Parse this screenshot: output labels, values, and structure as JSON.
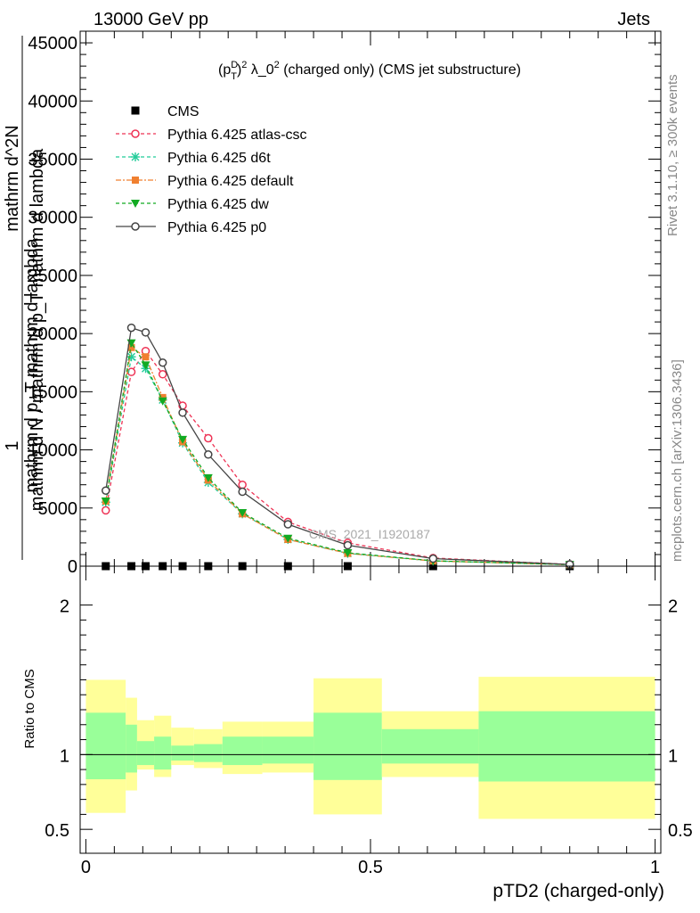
{
  "header": {
    "left": "13000 GeV pp",
    "right": "Jets"
  },
  "side_labels": {
    "rivet": "Rivet 3.1.10, ≥ 300k events",
    "mcplots": "mcplots.cern.ch [arXiv:1306.3436]"
  },
  "watermark": "CMS_2021_I1920187",
  "chart_data": [
    {
      "type": "line",
      "title_parts": {
        "a": "(p",
        "sup1": "D",
        "sub1": "T",
        "b": ")",
        "sup2": "2",
        "c": " λ_0",
        "sup3": "2",
        "d": " (charged only) (CMS jet substructure)"
      },
      "ylabel_lines": [
        "1",
        "mathrm d N / mathrm d p_T mathrm d lambda",
        "mathrm d^2N",
        "mathrm d p_T mathrm d lambda",
        "T"
      ],
      "ylim": [
        0,
        46000
      ],
      "xlim": [
        -0.01,
        1.01
      ],
      "y_ticks": [
        0,
        5000,
        10000,
        15000,
        20000,
        25000,
        30000,
        35000,
        40000,
        45000
      ],
      "y_tick_labels": [
        "0",
        "5000",
        "10000",
        "15000",
        "20000",
        "25000",
        "30000",
        "35000",
        "40000",
        "45000"
      ],
      "legend_position": "top-left",
      "data_x": [
        0.035,
        0.08,
        0.105,
        0.135,
        0.17,
        0.215,
        0.275,
        0.355,
        0.46,
        0.61,
        0.85
      ],
      "data_y": [
        0,
        0,
        0,
        0,
        0,
        0,
        0,
        0,
        0,
        0,
        0
      ],
      "series": [
        {
          "name": "CMS",
          "color": "#000000",
          "marker": "square",
          "dash": "none",
          "x": [
            0.035,
            0.08,
            0.105,
            0.135,
            0.17,
            0.215,
            0.275,
            0.355,
            0.46,
            0.61,
            0.85
          ],
          "y": [
            0,
            0,
            0,
            0,
            0,
            0,
            0,
            0,
            0,
            0,
            0
          ]
        },
        {
          "name": "Pythia 6.425 atlas-csc",
          "color": "#ee3355",
          "marker": "open-circle",
          "dash": "4,3",
          "x": [
            0.035,
            0.08,
            0.105,
            0.135,
            0.17,
            0.215,
            0.275,
            0.355,
            0.46,
            0.61,
            0.85
          ],
          "y": [
            4800,
            16700,
            18500,
            16500,
            13800,
            11000,
            7000,
            3800,
            2000,
            700,
            150
          ]
        },
        {
          "name": "Pythia 6.425 d6t",
          "color": "#22cc99",
          "marker": "star",
          "dash": "4,3",
          "x": [
            0.035,
            0.08,
            0.105,
            0.135,
            0.17,
            0.215,
            0.275,
            0.355,
            0.46,
            0.61,
            0.85
          ],
          "y": [
            5500,
            18000,
            17000,
            14300,
            10600,
            7200,
            4500,
            2300,
            1100,
            450,
            130
          ]
        },
        {
          "name": "Pythia 6.425 default",
          "color": "#f08030",
          "marker": "filled-square",
          "dash": "6,2,2,2",
          "x": [
            0.035,
            0.08,
            0.105,
            0.135,
            0.17,
            0.215,
            0.275,
            0.355,
            0.46,
            0.61,
            0.85
          ],
          "y": [
            5600,
            18800,
            18000,
            14500,
            10700,
            7400,
            4500,
            2300,
            1100,
            450,
            130
          ]
        },
        {
          "name": "Pythia 6.425 dw",
          "color": "#11aa22",
          "marker": "triangle-down",
          "dash": "4,3",
          "x": [
            0.035,
            0.08,
            0.105,
            0.135,
            0.17,
            0.215,
            0.275,
            0.355,
            0.46,
            0.61,
            0.85
          ],
          "y": [
            5600,
            19200,
            17300,
            14200,
            10900,
            7600,
            4600,
            2400,
            1150,
            460,
            130
          ]
        },
        {
          "name": "Pythia 6.425 p0",
          "color": "#444444",
          "marker": "open-circle",
          "dash": "none",
          "x": [
            0.035,
            0.08,
            0.105,
            0.135,
            0.17,
            0.215,
            0.275,
            0.355,
            0.46,
            0.61,
            0.85
          ],
          "y": [
            6500,
            20500,
            20100,
            17500,
            13200,
            9600,
            6400,
            3600,
            1800,
            650,
            150
          ]
        }
      ]
    },
    {
      "type": "area",
      "ylabel": "Ratio to CMS",
      "xlabel": "pTD2 (charged-only)",
      "ylim": [
        0.34,
        2.26
      ],
      "xlim": [
        -0.01,
        1.01
      ],
      "y_ticks": [
        0.5,
        1,
        2
      ],
      "y_tick_labels": [
        "0.5",
        "1",
        "2"
      ],
      "x_ticks": [
        0,
        0.5,
        1
      ],
      "x_tick_labels": [
        "0",
        "0.5",
        "1"
      ],
      "reference_line": 1,
      "band_colors": {
        "outer": "#ffff99",
        "inner": "#99ff99"
      },
      "bins": [
        {
          "lo": 0.0,
          "hi": 0.07,
          "inner": [
            0.835,
            1.28
          ],
          "outer": [
            0.61,
            1.5
          ]
        },
        {
          "lo": 0.07,
          "hi": 0.09,
          "inner": [
            0.88,
            1.2
          ],
          "outer": [
            0.76,
            1.38
          ]
        },
        {
          "lo": 0.09,
          "hi": 0.12,
          "inner": [
            0.93,
            1.09
          ],
          "outer": [
            0.9,
            1.23
          ]
        },
        {
          "lo": 0.12,
          "hi": 0.15,
          "inner": [
            0.9,
            1.12
          ],
          "outer": [
            0.85,
            1.26
          ]
        },
        {
          "lo": 0.15,
          "hi": 0.19,
          "inner": [
            0.96,
            1.06
          ],
          "outer": [
            0.93,
            1.18
          ]
        },
        {
          "lo": 0.19,
          "hi": 0.24,
          "inner": [
            0.95,
            1.07
          ],
          "outer": [
            0.91,
            1.17
          ]
        },
        {
          "lo": 0.24,
          "hi": 0.31,
          "inner": [
            0.93,
            1.12
          ],
          "outer": [
            0.87,
            1.22
          ]
        },
        {
          "lo": 0.31,
          "hi": 0.4,
          "inner": [
            0.94,
            1.12
          ],
          "outer": [
            0.88,
            1.22
          ]
        },
        {
          "lo": 0.4,
          "hi": 0.52,
          "inner": [
            0.83,
            1.28
          ],
          "outer": [
            0.6,
            1.51
          ]
        },
        {
          "lo": 0.52,
          "hi": 0.69,
          "inner": [
            0.94,
            1.17
          ],
          "outer": [
            0.85,
            1.29
          ]
        },
        {
          "lo": 0.69,
          "hi": 1.0,
          "inner": [
            0.82,
            1.29
          ],
          "outer": [
            0.57,
            1.52
          ]
        }
      ]
    }
  ]
}
